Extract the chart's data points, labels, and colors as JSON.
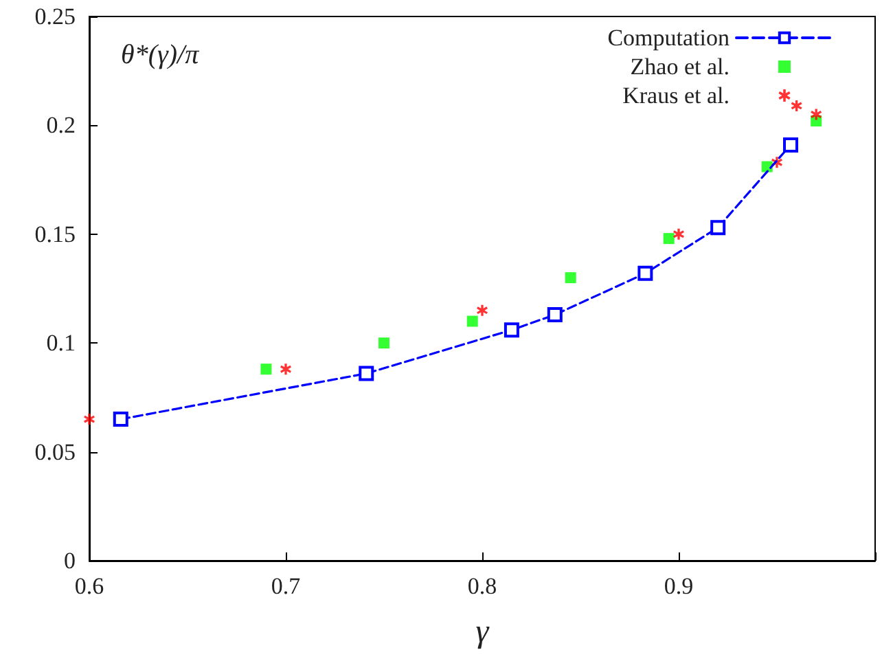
{
  "chart_data": {
    "type": "scatter",
    "ylabel": "θ*(γ)/π",
    "xlabel": "γ",
    "xlim": [
      0.6,
      1.0
    ],
    "xticks": [
      0.6,
      0.7,
      0.8,
      0.9,
      {
        "value": 1.0,
        "label": null
      }
    ],
    "ylim": [
      0,
      0.25
    ],
    "yticks": [
      0,
      0.05,
      0.1,
      0.15,
      0.2,
      0.25
    ],
    "grid": false,
    "legend": "top right",
    "series": [
      {
        "name": "Computation",
        "type": "line",
        "color": "#0000ff",
        "marker": "square",
        "line_style": "dashed",
        "x": [
          0.616,
          0.741,
          0.815,
          0.837,
          0.883,
          0.92,
          0.957
        ],
        "values": [
          0.065,
          0.086,
          0.106,
          0.113,
          0.132,
          0.153,
          0.191
        ]
      },
      {
        "name": "Zhao et al.",
        "color": "#00ff00",
        "marker": "square",
        "x": [
          0.69,
          0.75,
          0.795,
          0.845,
          0.895,
          0.945,
          0.97
        ],
        "values": [
          0.088,
          0.1,
          0.11,
          0.13,
          0.148,
          0.181,
          0.202
        ]
      },
      {
        "name": "Kraus et al.",
        "color": "#ff0000",
        "marker": "cross",
        "x": [
          0.6,
          0.7,
          0.8,
          0.9,
          0.95,
          0.96,
          0.97
        ],
        "values": [
          0.065,
          0.088,
          0.115,
          0.15,
          0.183,
          0.209,
          0.205
        ]
      }
    ]
  }
}
